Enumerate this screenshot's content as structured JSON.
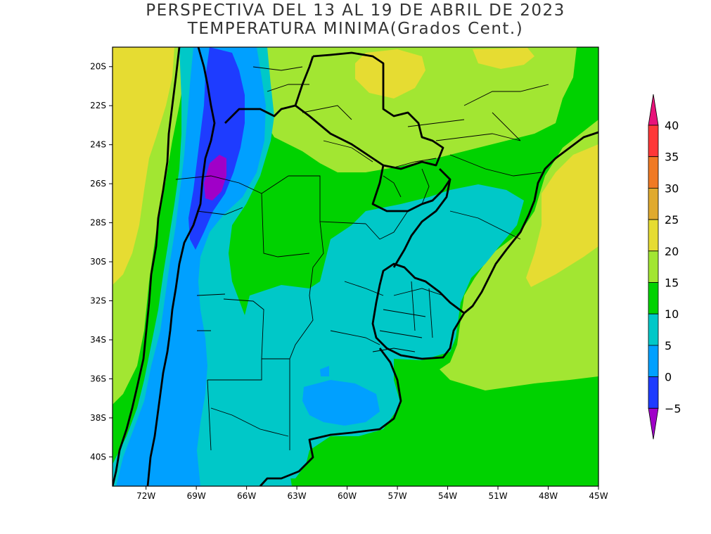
{
  "title": {
    "line1": "PERSPECTIVA DEL 13 AL 19 DE ABRIL DE 2023",
    "line2": "TEMPERATURA MINIMA(Grados Cent.)"
  },
  "map": {
    "lon_range": [
      -74,
      -45
    ],
    "lat_range": [
      -41.5,
      -19
    ],
    "lon_ticks": [
      {
        "value": -72,
        "label": "72W"
      },
      {
        "value": -69,
        "label": "69W"
      },
      {
        "value": -66,
        "label": "66W"
      },
      {
        "value": -63,
        "label": "63W"
      },
      {
        "value": -60,
        "label": "60W"
      },
      {
        "value": -57,
        "label": "57W"
      },
      {
        "value": -54,
        "label": "54W"
      },
      {
        "value": -51,
        "label": "51W"
      },
      {
        "value": -48,
        "label": "48W"
      },
      {
        "value": -45,
        "label": "45W"
      }
    ],
    "lat_ticks": [
      {
        "value": -20,
        "label": "20S"
      },
      {
        "value": -22,
        "label": "22S"
      },
      {
        "value": -24,
        "label": "24S"
      },
      {
        "value": -26,
        "label": "26S"
      },
      {
        "value": -28,
        "label": "28S"
      },
      {
        "value": -30,
        "label": "30S"
      },
      {
        "value": -32,
        "label": "32S"
      },
      {
        "value": -34,
        "label": "34S"
      },
      {
        "value": -36,
        "label": "36S"
      },
      {
        "value": -38,
        "label": "38S"
      },
      {
        "value": -40,
        "label": "40S"
      }
    ]
  },
  "colorbar": {
    "levels": [
      "40",
      "35",
      "30",
      "25",
      "20",
      "15",
      "10",
      "5",
      "0",
      "−5"
    ],
    "colors": [
      "#e8127a",
      "#ff3838",
      "#f07a24",
      "#e0aa2e",
      "#e6dc32",
      "#a2e632",
      "#00d200",
      "#00c8c8",
      "#00a0ff",
      "#1e3cff",
      "#a000c8"
    ]
  }
}
